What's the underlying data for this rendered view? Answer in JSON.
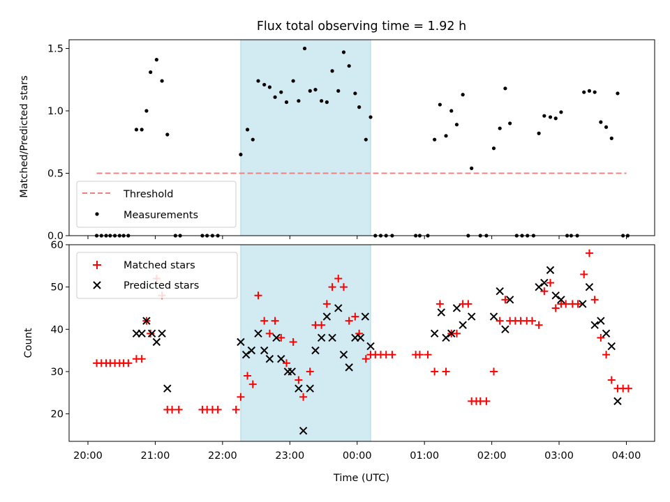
{
  "chart_data": [
    {
      "type": "scatter",
      "title": "Flux total observing time = 1.92 h",
      "ylabel": "Matched/Predicted stars",
      "xlabel": "",
      "ylim": [
        0,
        1.57
      ],
      "yticks": [
        "0.0",
        "0.5",
        "1.0",
        "1.5"
      ],
      "ytick_values": [
        0,
        0.5,
        1.0,
        1.5
      ],
      "shaded_region": [
        22.27,
        24.2
      ],
      "colors": {
        "threshold": "#f08080",
        "measurements": "#000000",
        "shade": "#add8e6"
      },
      "legend": {
        "placement": "lower-left",
        "entries": [
          "Threshold",
          "Measurements"
        ]
      },
      "threshold": {
        "name": "Threshold",
        "value": 0.5,
        "x_range": [
          20.13,
          28.0
        ]
      },
      "series": [
        {
          "name": "Measurements",
          "points": [
            [
              20.13,
              0
            ],
            [
              20.2,
              0
            ],
            [
              20.27,
              0
            ],
            [
              20.33,
              0
            ],
            [
              20.4,
              0
            ],
            [
              20.47,
              0
            ],
            [
              20.53,
              0
            ],
            [
              20.6,
              0
            ],
            [
              20.72,
              0.85
            ],
            [
              20.8,
              0.85
            ],
            [
              20.87,
              1.0
            ],
            [
              20.93,
              1.31
            ],
            [
              21.02,
              1.41
            ],
            [
              21.1,
              1.24
            ],
            [
              21.18,
              0.81
            ],
            [
              21.3,
              0
            ],
            [
              21.37,
              0
            ],
            [
              21.7,
              0
            ],
            [
              21.77,
              0
            ],
            [
              21.85,
              0
            ],
            [
              21.93,
              0
            ],
            [
              22.27,
              0.65
            ],
            [
              22.37,
              0.85
            ],
            [
              22.45,
              0.77
            ],
            [
              22.53,
              1.24
            ],
            [
              22.62,
              1.21
            ],
            [
              22.7,
              1.19
            ],
            [
              22.78,
              1.11
            ],
            [
              22.87,
              1.15
            ],
            [
              22.95,
              1.07
            ],
            [
              23.05,
              1.24
            ],
            [
              23.13,
              1.08
            ],
            [
              23.22,
              1.5
            ],
            [
              23.3,
              1.16
            ],
            [
              23.38,
              1.17
            ],
            [
              23.47,
              1.08
            ],
            [
              23.55,
              1.07
            ],
            [
              23.63,
              1.32
            ],
            [
              23.72,
              1.16
            ],
            [
              23.8,
              1.47
            ],
            [
              23.88,
              1.36
            ],
            [
              23.97,
              1.14
            ],
            [
              24.03,
              1.03
            ],
            [
              24.13,
              0.77
            ],
            [
              24.2,
              0.95
            ],
            [
              24.27,
              0
            ],
            [
              24.35,
              0
            ],
            [
              24.43,
              0
            ],
            [
              24.52,
              0
            ],
            [
              24.87,
              0
            ],
            [
              24.93,
              0
            ],
            [
              25.05,
              0
            ],
            [
              25.15,
              0.77
            ],
            [
              25.23,
              1.05
            ],
            [
              25.32,
              0.8
            ],
            [
              25.4,
              1.0
            ],
            [
              25.48,
              0.89
            ],
            [
              25.57,
              1.13
            ],
            [
              25.7,
              0.54
            ],
            [
              25.65,
              0
            ],
            [
              25.83,
              0
            ],
            [
              25.92,
              0
            ],
            [
              26.03,
              0.7
            ],
            [
              26.12,
              0.86
            ],
            [
              26.2,
              1.18
            ],
            [
              26.27,
              0.9
            ],
            [
              26.37,
              0
            ],
            [
              26.45,
              0
            ],
            [
              26.53,
              0
            ],
            [
              26.62,
              0
            ],
            [
              26.7,
              0.82
            ],
            [
              26.78,
              0.96
            ],
            [
              26.87,
              0.95
            ],
            [
              26.95,
              0.94
            ],
            [
              27.03,
              0.99
            ],
            [
              27.12,
              0
            ],
            [
              27.18,
              0
            ],
            [
              27.27,
              0
            ],
            [
              27.37,
              1.15
            ],
            [
              27.45,
              1.16
            ],
            [
              27.53,
              1.15
            ],
            [
              27.62,
              0.91
            ],
            [
              27.7,
              0.87
            ],
            [
              27.78,
              0.78
            ],
            [
              27.87,
              1.14
            ],
            [
              27.95,
              0
            ],
            [
              28.02,
              0
            ]
          ]
        }
      ]
    },
    {
      "type": "scatter",
      "title": "",
      "xlabel": "Time (UTC)",
      "ylabel": "Count",
      "ylim": [
        13.5,
        60
      ],
      "yticks": [
        "20",
        "30",
        "40",
        "50",
        "60"
      ],
      "ytick_values": [
        20,
        30,
        40,
        50,
        60
      ],
      "xlim": [
        19.72,
        28.42
      ],
      "xticks": [
        "20:00",
        "21:00",
        "22:00",
        "23:00",
        "00:00",
        "01:00",
        "02:00",
        "03:00",
        "04:00"
      ],
      "xtick_values": [
        20,
        21,
        22,
        23,
        24,
        25,
        26,
        27,
        28
      ],
      "shaded_region": [
        22.27,
        24.2
      ],
      "colors": {
        "matched": "#ff0000",
        "predicted": "#000000",
        "shade": "#add8e6"
      },
      "legend": {
        "placement": "top-left",
        "entries": [
          "Matched stars",
          "Predicted stars"
        ]
      },
      "series": [
        {
          "name": "Matched stars",
          "marker": "plus",
          "points": [
            [
              20.13,
              32
            ],
            [
              20.2,
              32
            ],
            [
              20.27,
              32
            ],
            [
              20.33,
              32
            ],
            [
              20.4,
              32
            ],
            [
              20.47,
              32
            ],
            [
              20.53,
              32
            ],
            [
              20.6,
              32
            ],
            [
              20.72,
              33
            ],
            [
              20.8,
              33
            ],
            [
              20.87,
              42
            ],
            [
              20.93,
              39
            ],
            [
              21.02,
              52
            ],
            [
              21.1,
              48
            ],
            [
              21.18,
              21
            ],
            [
              21.25,
              21
            ],
            [
              21.35,
              21
            ],
            [
              21.7,
              21
            ],
            [
              21.77,
              21
            ],
            [
              21.85,
              21
            ],
            [
              21.93,
              21
            ],
            [
              22.2,
              21
            ],
            [
              22.27,
              24
            ],
            [
              22.37,
              29
            ],
            [
              22.45,
              27
            ],
            [
              22.53,
              48
            ],
            [
              22.62,
              42
            ],
            [
              22.7,
              39
            ],
            [
              22.78,
              42
            ],
            [
              22.87,
              38
            ],
            [
              22.95,
              32
            ],
            [
              23.05,
              37
            ],
            [
              23.13,
              28
            ],
            [
              23.2,
              24
            ],
            [
              23.3,
              30
            ],
            [
              23.38,
              41
            ],
            [
              23.47,
              41
            ],
            [
              23.55,
              46
            ],
            [
              23.63,
              50
            ],
            [
              23.72,
              52
            ],
            [
              23.8,
              50
            ],
            [
              23.88,
              42
            ],
            [
              23.97,
              43
            ],
            [
              24.03,
              39
            ],
            [
              24.13,
              33
            ],
            [
              24.2,
              34
            ],
            [
              24.27,
              34
            ],
            [
              24.35,
              34
            ],
            [
              24.43,
              34
            ],
            [
              24.52,
              34
            ],
            [
              24.87,
              34
            ],
            [
              24.93,
              34
            ],
            [
              25.05,
              34
            ],
            [
              25.15,
              30
            ],
            [
              25.23,
              46
            ],
            [
              25.32,
              30
            ],
            [
              25.4,
              39
            ],
            [
              25.48,
              39
            ],
            [
              25.57,
              46
            ],
            [
              25.65,
              46
            ],
            [
              25.7,
              23
            ],
            [
              25.77,
              23
            ],
            [
              25.83,
              23
            ],
            [
              25.92,
              23
            ],
            [
              26.03,
              30
            ],
            [
              26.12,
              42
            ],
            [
              26.2,
              47
            ],
            [
              26.27,
              42
            ],
            [
              26.35,
              42
            ],
            [
              26.43,
              42
            ],
            [
              26.52,
              42
            ],
            [
              26.6,
              42
            ],
            [
              26.7,
              41
            ],
            [
              26.78,
              49
            ],
            [
              26.87,
              51
            ],
            [
              26.95,
              45
            ],
            [
              27.03,
              46
            ],
            [
              27.1,
              46
            ],
            [
              27.2,
              46
            ],
            [
              27.28,
              46
            ],
            [
              27.37,
              53
            ],
            [
              27.45,
              58
            ],
            [
              27.53,
              47
            ],
            [
              27.62,
              38
            ],
            [
              27.7,
              34
            ],
            [
              27.78,
              28
            ],
            [
              27.87,
              26
            ],
            [
              27.95,
              26
            ],
            [
              28.03,
              26
            ]
          ]
        },
        {
          "name": "Predicted stars",
          "marker": "x",
          "points": [
            [
              20.72,
              39
            ],
            [
              20.8,
              39
            ],
            [
              20.87,
              42
            ],
            [
              20.95,
              39
            ],
            [
              21.02,
              37
            ],
            [
              21.1,
              39
            ],
            [
              21.18,
              26
            ],
            [
              22.27,
              37
            ],
            [
              22.35,
              34
            ],
            [
              22.43,
              35
            ],
            [
              22.53,
              39
            ],
            [
              22.62,
              35
            ],
            [
              22.7,
              33
            ],
            [
              22.8,
              38
            ],
            [
              22.87,
              33
            ],
            [
              22.97,
              30
            ],
            [
              23.03,
              30
            ],
            [
              23.13,
              26
            ],
            [
              23.2,
              16
            ],
            [
              23.3,
              26
            ],
            [
              23.38,
              35
            ],
            [
              23.47,
              38
            ],
            [
              23.55,
              43
            ],
            [
              23.63,
              38
            ],
            [
              23.72,
              45
            ],
            [
              23.8,
              34
            ],
            [
              23.88,
              31
            ],
            [
              23.97,
              38
            ],
            [
              24.05,
              38
            ],
            [
              24.12,
              43
            ],
            [
              24.2,
              36
            ],
            [
              25.15,
              39
            ],
            [
              25.25,
              44
            ],
            [
              25.32,
              38
            ],
            [
              25.4,
              39
            ],
            [
              25.48,
              45
            ],
            [
              25.57,
              41
            ],
            [
              25.7,
              43
            ],
            [
              26.03,
              43
            ],
            [
              26.12,
              49
            ],
            [
              26.2,
              40
            ],
            [
              26.27,
              47
            ],
            [
              26.7,
              50
            ],
            [
              26.78,
              51
            ],
            [
              26.87,
              54
            ],
            [
              26.95,
              48
            ],
            [
              27.03,
              47
            ],
            [
              27.35,
              46
            ],
            [
              27.45,
              50
            ],
            [
              27.53,
              41
            ],
            [
              27.62,
              42
            ],
            [
              27.7,
              39
            ],
            [
              27.78,
              36
            ],
            [
              27.87,
              23
            ]
          ]
        }
      ]
    }
  ]
}
